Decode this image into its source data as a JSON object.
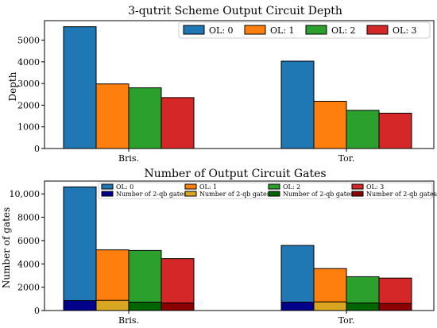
{
  "chart_data": [
    {
      "type": "bar",
      "title": "3-qutrit Scheme Output Circuit Depth",
      "xlabel": "",
      "ylabel": "Depth",
      "categories": [
        "Bris.",
        "Tor."
      ],
      "ylim": [
        0,
        5900
      ],
      "yticks": [
        "0",
        "1000",
        "2000",
        "3000",
        "4000",
        "5000"
      ],
      "yticks_values": [
        0,
        1000,
        2000,
        3000,
        4000,
        5000
      ],
      "legend_placement": "top-right",
      "series": [
        {
          "name": "OL: 0",
          "color": "#1f77b4",
          "values": [
            5620,
            4030
          ]
        },
        {
          "name": "OL: 1",
          "color": "#ff7f0e",
          "values": [
            2980,
            2180
          ]
        },
        {
          "name": "OL: 2",
          "color": "#2ca02c",
          "values": [
            2800,
            1760
          ]
        },
        {
          "name": "OL: 3",
          "color": "#d62728",
          "values": [
            2350,
            1630
          ]
        }
      ]
    },
    {
      "type": "bar",
      "title": "Number of Output Circuit Gates",
      "xlabel": "",
      "ylabel": "Number of gates",
      "categories": [
        "Bris.",
        "Tor."
      ],
      "ylim": [
        0,
        11100
      ],
      "yticks": [
        "0",
        "2000",
        "4000",
        "6000",
        "8000",
        "10,000"
      ],
      "yticks_values": [
        0,
        2000,
        4000,
        6000,
        8000,
        10000
      ],
      "legend_placement": "top",
      "series": [
        {
          "name": "OL: 0",
          "color": "#1f77b4",
          "values": [
            10600,
            5580
          ]
        },
        {
          "name": "OL: 1",
          "color": "#ff7f0e",
          "values": [
            5200,
            3600
          ]
        },
        {
          "name": "OL: 2",
          "color": "#2ca02c",
          "values": [
            5150,
            2900
          ]
        },
        {
          "name": "OL: 3",
          "color": "#d62728",
          "values": [
            4450,
            2780
          ]
        }
      ],
      "overlay_series": [
        {
          "name": "Number of 2-qb gates",
          "color": "#00008b",
          "values": [
            850,
            720
          ]
        },
        {
          "name": "Number of 2-qb gates",
          "color": "#daa520",
          "values": [
            870,
            740
          ]
        },
        {
          "name": "Number of 2-qb gates",
          "color": "#006400",
          "values": [
            720,
            650
          ]
        },
        {
          "name": "Number of 2-qb gates",
          "color": "#8b0000",
          "values": [
            650,
            600
          ]
        }
      ]
    }
  ]
}
